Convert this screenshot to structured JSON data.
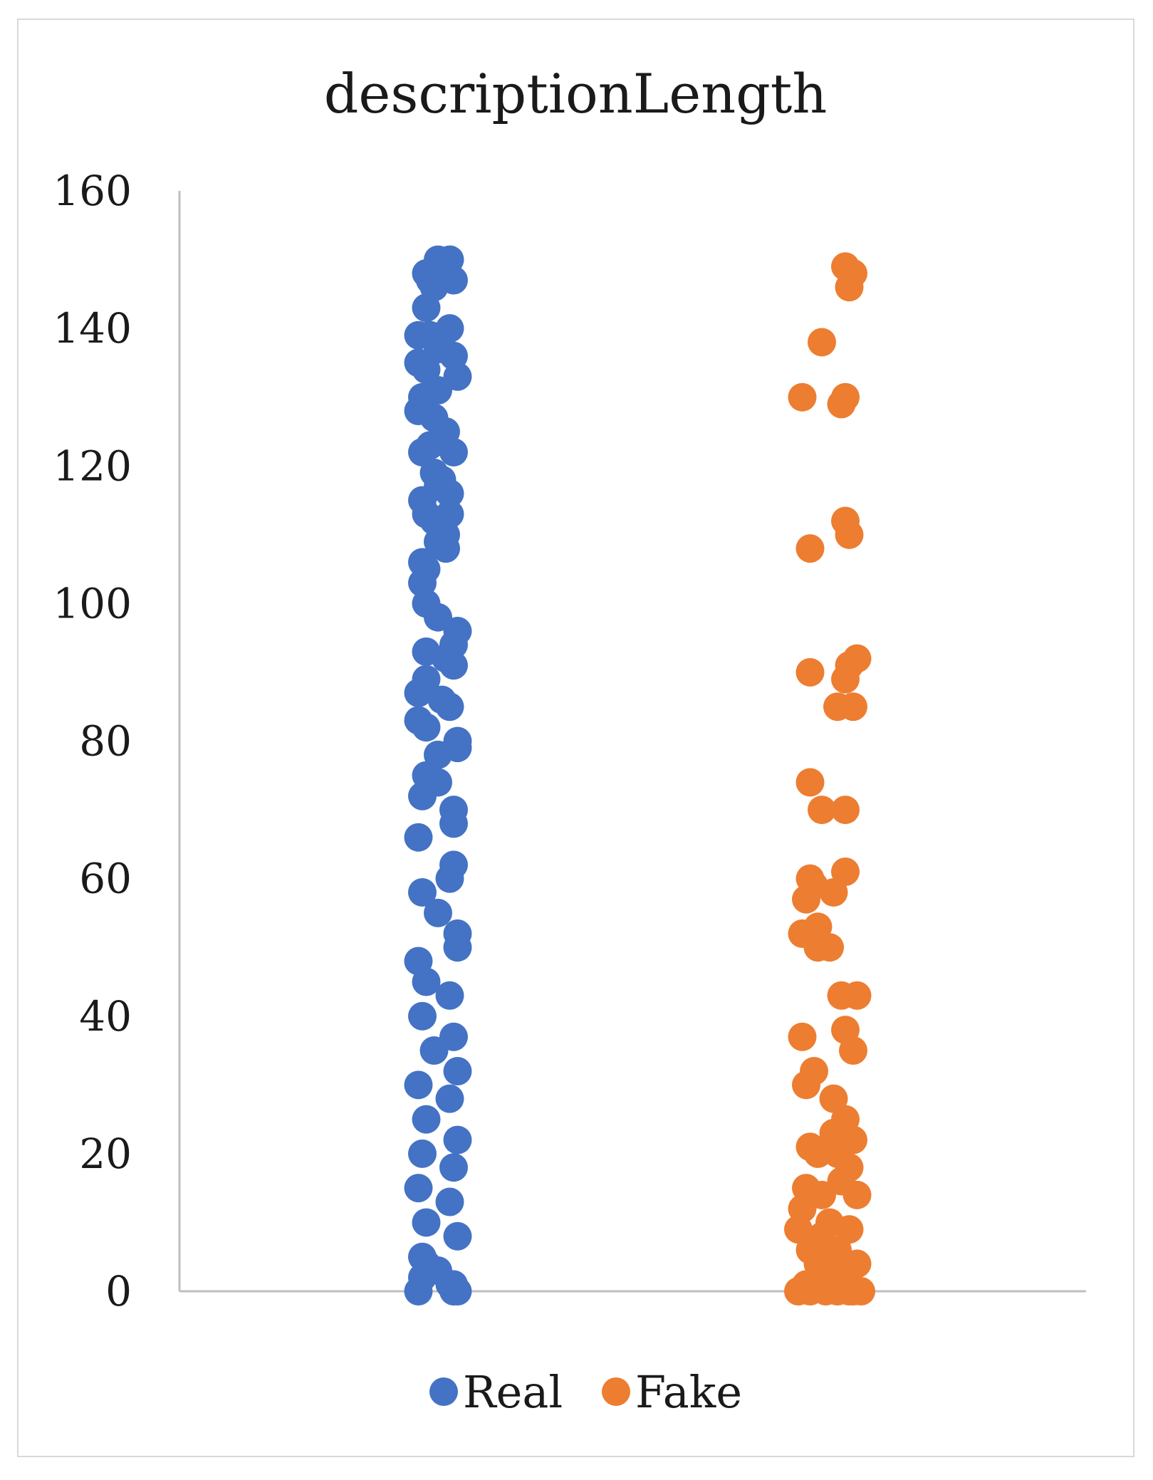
{
  "chart_data": {
    "type": "scatter",
    "title": "descriptionLength",
    "xlabel": "",
    "ylabel": "",
    "ylim": [
      0,
      160
    ],
    "yticks": [
      "0",
      "20",
      "40",
      "60",
      "80",
      "100",
      "120",
      "140",
      "160"
    ],
    "grid": false,
    "legend_position": "bottom",
    "colors": {
      "Real": "#4472C4",
      "Fake": "#ED7D31",
      "axis": "#bfbfbf"
    },
    "series": [
      {
        "name": "Real",
        "color": "#4472C4",
        "x": [
          1.0,
          1.01,
          0.97,
          0.98,
          1.02,
          1.03,
          0.99,
          1.04,
          0.95,
          0.97,
          0.98,
          1.03,
          0.96,
          0.97,
          1.0,
          1.05,
          0.95,
          0.99,
          1.0,
          0.95,
          1.04,
          1.02,
          0.96,
          0.98,
          0.99,
          1.0,
          1.04,
          0.96,
          1.01,
          0.97,
          1.03,
          1.03,
          0.96,
          0.99,
          1.0,
          1.02,
          0.96,
          0.97,
          1.02,
          0.97,
          1.0,
          1.05,
          0.97,
          1.04,
          0.97,
          1.04,
          0.95,
          1.03,
          1.01,
          1.02,
          0.97,
          1.0,
          0.97,
          1.05,
          0.95,
          1.05,
          0.96,
          1.04,
          1.0,
          1.04,
          0.95,
          1.03,
          0.96,
          1.04,
          1.0,
          1.05,
          0.95,
          1.05,
          0.97,
          1.03,
          0.96,
          1.04,
          0.99,
          1.05,
          0.95,
          1.03,
          0.97,
          1.05,
          0.96,
          1.04,
          0.95,
          1.03,
          0.97,
          1.05,
          0.96,
          1.0,
          1.04,
          0.95,
          1.03,
          0.96,
          1.05,
          0.97,
          1.04
        ],
        "y": [
          150,
          149,
          148,
          147,
          148,
          150,
          146,
          147,
          139,
          143,
          139,
          140,
          130,
          134,
          131,
          133,
          128,
          127,
          137,
          135,
          136,
          125,
          122,
          123,
          119,
          117,
          122,
          115,
          118,
          113,
          116,
          113,
          106,
          112,
          109,
          110,
          103,
          105,
          108,
          100,
          98,
          96,
          93,
          91,
          89,
          94,
          87,
          85,
          86,
          92,
          82,
          78,
          75,
          79,
          83,
          80,
          72,
          70,
          74,
          68,
          66,
          60,
          58,
          62,
          55,
          52,
          48,
          50,
          45,
          43,
          40,
          37,
          35,
          32,
          30,
          28,
          25,
          22,
          20,
          18,
          15,
          13,
          10,
          8,
          5,
          3,
          0,
          0,
          1,
          2,
          0,
          4,
          1
        ]
      },
      {
        "name": "Fake",
        "color": "#ED7D31",
        "x": [
          2.04,
          2.06,
          2.05,
          1.98,
          2.04,
          1.93,
          2.03,
          2.04,
          1.95,
          2.05,
          1.95,
          2.07,
          2.02,
          1.95,
          2.04,
          2.05,
          2.06,
          2.04,
          1.98,
          2.04,
          1.95,
          1.94,
          1.96,
          2.01,
          1.93,
          1.97,
          2.0,
          1.97,
          2.07,
          2.03,
          2.04,
          2.06,
          1.93,
          1.96,
          2.01,
          2.04,
          1.94,
          1.97,
          2.01,
          2.05,
          1.95,
          2.02,
          2.06,
          1.94,
          1.98,
          2.03,
          2.07,
          1.93,
          2.0,
          2.05,
          1.92,
          1.95,
          1.98,
          2.02,
          2.07,
          1.97,
          2.0,
          2.03,
          1.94,
          1.98,
          2.02,
          2.06,
          1.92,
          1.95,
          1.99,
          2.02,
          2.05,
          2.08
        ],
        "y": [
          149,
          148,
          146,
          138,
          130,
          130,
          129,
          112,
          108,
          110,
          90,
          92,
          85,
          74,
          89,
          91,
          85,
          70,
          70,
          61,
          60,
          57,
          59,
          58,
          52,
          50,
          50,
          53,
          43,
          43,
          38,
          35,
          37,
          32,
          28,
          25,
          30,
          20,
          23,
          18,
          21,
          20,
          22,
          15,
          14,
          16,
          14,
          12,
          10,
          9,
          9,
          6,
          8,
          6,
          4,
          4,
          3,
          2,
          1,
          2,
          1,
          0,
          0,
          0,
          0,
          0,
          0,
          0
        ]
      }
    ]
  },
  "legend": {
    "real_label": "Real",
    "fake_label": "Fake"
  }
}
